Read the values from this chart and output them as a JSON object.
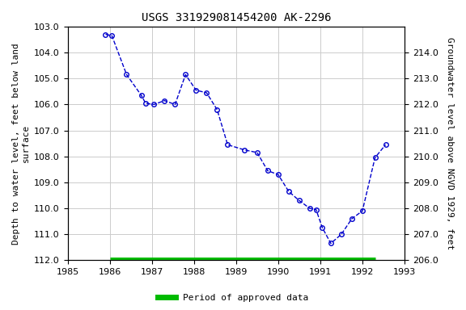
{
  "title": "USGS 331929081454200 AK-2296",
  "ylabel_left": "Depth to water level, feet below land\nsurface",
  "ylabel_right": "Groundwater level above NGVD 1929, feet",
  "xlim": [
    1985,
    1993
  ],
  "ylim_left": [
    112.0,
    103.0
  ],
  "ylim_right": [
    206.0,
    215.0
  ],
  "yticks_left": [
    103.0,
    104.0,
    105.0,
    106.0,
    107.0,
    108.0,
    109.0,
    110.0,
    111.0,
    112.0
  ],
  "yticks_right": [
    206.0,
    207.0,
    208.0,
    209.0,
    210.0,
    211.0,
    212.0,
    213.0,
    214.0
  ],
  "xticks": [
    1985,
    1986,
    1987,
    1988,
    1989,
    1990,
    1991,
    1992,
    1993
  ],
  "data_x": [
    1985.9,
    1986.05,
    1986.4,
    1986.75,
    1986.85,
    1987.05,
    1987.3,
    1987.55,
    1987.8,
    1988.05,
    1988.3,
    1988.55,
    1988.8,
    1989.2,
    1989.5,
    1989.75,
    1990.0,
    1990.25,
    1990.5,
    1990.75,
    1990.9,
    1991.05,
    1991.25,
    1991.5,
    1991.75,
    1992.0,
    1992.3,
    1992.55
  ],
  "data_y": [
    103.3,
    103.35,
    104.85,
    105.65,
    105.95,
    106.0,
    105.85,
    106.0,
    104.85,
    105.45,
    105.55,
    106.2,
    107.55,
    107.75,
    107.85,
    108.55,
    108.7,
    109.35,
    109.7,
    110.0,
    110.05,
    110.75,
    111.35,
    111.0,
    110.4,
    110.1,
    108.05,
    107.55
  ],
  "line_color": "#0000cc",
  "marker_color": "#0000cc",
  "marker_facecolor": "none",
  "line_style": "--",
  "marker_style": "o",
  "marker_size": 4,
  "bg_color": "#ffffff",
  "grid_color": "#cccccc",
  "approved_bar_color": "#00bb00",
  "approved_bar_y": 112.0,
  "approved_bar_x_start": 1986.0,
  "approved_bar_x_end": 1992.3,
  "legend_label": "Period of approved data",
  "title_fontsize": 10,
  "axis_fontsize": 8,
  "tick_fontsize": 8
}
